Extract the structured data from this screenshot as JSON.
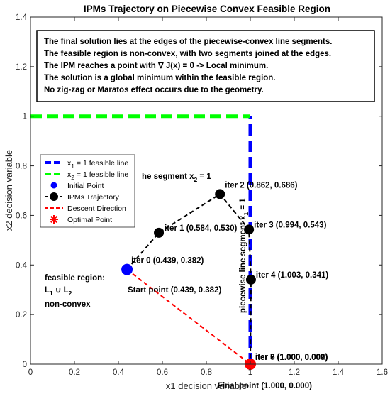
{
  "chart_data": {
    "type": "line",
    "title": "IPMs Trajectory on Piecewise Convex Feasible Region",
    "xlabel": "x1 decision variable",
    "ylabel": "x2 decision variable",
    "xlim": [
      0,
      1.6
    ],
    "ylim": [
      0,
      1.4
    ],
    "xticks": [
      "0",
      "0.2",
      "0.4",
      "0.6",
      "0.8",
      "1",
      "1.2",
      "1.4",
      "1.6"
    ],
    "yticks": [
      "0",
      "0.2",
      "0.4",
      "0.6",
      "0.8",
      "1",
      "1.2",
      "1.4"
    ],
    "grid": false,
    "legend_position": "left",
    "series": [
      {
        "name": "x_1 = 1 feasible line",
        "color": "#0000ff",
        "style": "dashed",
        "x": [
          1,
          1
        ],
        "y": [
          0,
          1
        ]
      },
      {
        "name": "x_2 = 1 feasible line",
        "color": "#00ff00",
        "style": "dashed",
        "x": [
          0,
          1
        ],
        "y": [
          1,
          1
        ]
      },
      {
        "name": "Initial Point",
        "color": "#0000ff",
        "marker": "circle",
        "x": [
          0.439
        ],
        "y": [
          0.382
        ]
      },
      {
        "name": "IPMs Trajectory",
        "color": "#000000",
        "style": "dashed",
        "marker": "circle",
        "x": [
          0.439,
          0.584,
          0.862,
          0.994,
          1.003,
          1.0,
          1.0,
          1.0
        ],
        "y": [
          0.382,
          0.53,
          0.686,
          0.543,
          0.341,
          0.002,
          0.001,
          0.0
        ]
      },
      {
        "name": "Descent Direction",
        "color": "#ff0000",
        "style": "dashed",
        "x": [
          0.439,
          1.0
        ],
        "y": [
          0.382,
          0.0
        ]
      },
      {
        "name": "Optimal Point",
        "color": "#ff0000",
        "marker": "star",
        "x": [
          1.0
        ],
        "y": [
          0.0
        ]
      }
    ],
    "iteration_labels": [
      {
        "text": "iter 0 (0.439, 0.382)",
        "x": 0.439,
        "y": 0.382
      },
      {
        "text": "iter 1 (0.584, 0.530)",
        "x": 0.584,
        "y": 0.53
      },
      {
        "text": "iter 2 (0.862, 0.686)",
        "x": 0.862,
        "y": 0.686
      },
      {
        "text": "iter 3 (0.994, 0.543)",
        "x": 0.994,
        "y": 0.543
      },
      {
        "text": "iter 4 (1.003, 0.341)",
        "x": 1.003,
        "y": 0.341
      },
      {
        "text": "iter 5 (1.000, 0.002)",
        "x": 1.0,
        "y": 0.002
      },
      {
        "text": "iter 6 (1.000, 0.001)",
        "x": 1.0,
        "y": 0.001
      },
      {
        "text": "iter 7 (1.000, 0.000)",
        "x": 1.0,
        "y": 0.0
      }
    ],
    "annotations": {
      "segment_x2": {
        "text": "he segment x",
        "sub": "2",
        "tail": " = 1"
      },
      "segment_x1": {
        "text": "piecewise line segment x",
        "sub": "1",
        "tail": " = 1"
      },
      "start_point": "Start point (0.439, 0.382)",
      "final_point": "Final point (1.000, 0.000)",
      "feasible_region": [
        "feasible region:",
        "L",
        "1",
        " ∪ L",
        "2",
        "non-convex"
      ]
    },
    "notes": [
      "The final solution lies at the edges of the piecewise-convex line segments.",
      "The feasible region is non-convex, with two segments joined at the edges.",
      "The IPM reaches a point with ∇ J(x) = 0 -> Local minimum.",
      "The solution is a global minimum within the feasible region.",
      "No zig-zag or Maratos effect occurs due to the geometry."
    ],
    "legend": [
      {
        "label": "x",
        "sub": "1",
        "tail": " = 1 feasible line",
        "kind": "line",
        "color": "#0000ff"
      },
      {
        "label": "x",
        "sub": "2",
        "tail": " = 1 feasible line",
        "kind": "line",
        "color": "#00ff00"
      },
      {
        "label": "Initial Point",
        "sub": "",
        "tail": "",
        "kind": "dot",
        "color": "#0000ff"
      },
      {
        "label": "IPMs Trajectory",
        "sub": "",
        "tail": "",
        "kind": "dotline",
        "color": "#000000"
      },
      {
        "label": "Descent Direction",
        "sub": "",
        "tail": "",
        "kind": "dashline",
        "color": "#ff0000"
      },
      {
        "label": "Optimal Point",
        "sub": "",
        "tail": "",
        "kind": "star",
        "color": "#ff0000"
      }
    ]
  }
}
